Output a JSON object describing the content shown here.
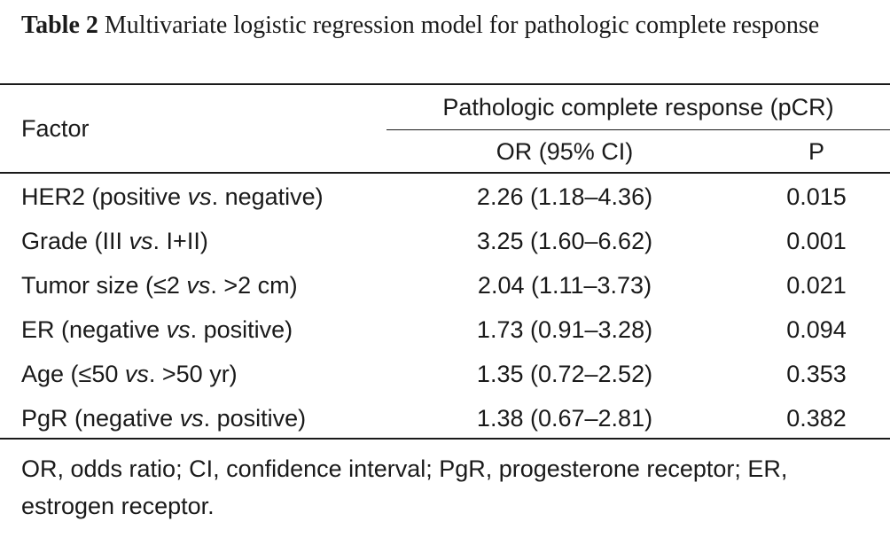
{
  "caption": {
    "label": "Table 2",
    "text": "Multivariate logistic regression model for pathologic complete response"
  },
  "header": {
    "factor": "Factor",
    "group": "Pathologic complete response (pCR)",
    "or": "OR (95% CI)",
    "p": "P"
  },
  "rows": [
    {
      "pre": "HER2 (positive ",
      "vs": "vs",
      "post": ". negative)",
      "or": "2.26 (1.18–4.36)",
      "p": "0.015"
    },
    {
      "pre": "Grade (III ",
      "vs": "vs",
      "post": ". I+II)",
      "or": "3.25 (1.60–6.62)",
      "p": "0.001"
    },
    {
      "pre": "Tumor size (≤2 ",
      "vs": "vs",
      "post": ". >2 cm)",
      "or": "2.04 (1.11–3.73)",
      "p": "0.021"
    },
    {
      "pre": "ER (negative ",
      "vs": "vs",
      "post": ". positive)",
      "or": "1.73 (0.91–3.28)",
      "p": "0.094"
    },
    {
      "pre": "Age (≤50 ",
      "vs": "vs",
      "post": ". >50 yr)",
      "or": "1.35 (0.72–2.52)",
      "p": "0.353"
    },
    {
      "pre": "PgR (negative ",
      "vs": "vs",
      "post": ". positive)",
      "or": "1.38 (0.67–2.81)",
      "p": "0.382"
    }
  ],
  "footnote": "OR, odds ratio; CI, confidence interval; PgR, progesterone receptor; ER, estrogen receptor."
}
